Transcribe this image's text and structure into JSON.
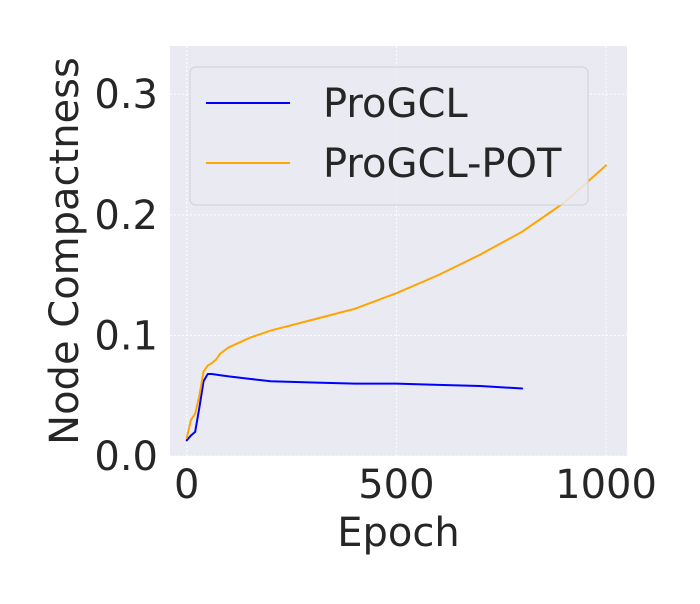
{
  "chart_data": {
    "type": "line",
    "title": "",
    "xlabel": "Epoch",
    "ylabel": "Node Compactness",
    "xlim": [
      -40,
      1050
    ],
    "ylim": [
      0,
      0.34
    ],
    "xticks": [
      {
        "value": 0,
        "label": "0"
      },
      {
        "value": 500,
        "label": "500"
      },
      {
        "value": 1000,
        "label": "1000"
      }
    ],
    "yticks": [
      {
        "value": 0,
        "label": "0.0"
      },
      {
        "value": 0.1,
        "label": "0.1"
      },
      {
        "value": 0.2,
        "label": "0.2"
      },
      {
        "value": 0.3,
        "label": "0.3"
      }
    ],
    "grid": true,
    "legend": "top-left",
    "background_color": "#eaeaf2",
    "series": [
      {
        "name": "ProGCL",
        "color": "#0000ff",
        "x": [
          0,
          10,
          20,
          30,
          40,
          50,
          60,
          80,
          100,
          150,
          200,
          300,
          400,
          500,
          600,
          700,
          800
        ],
        "y": [
          0.013,
          0.017,
          0.02,
          0.04,
          0.062,
          0.068,
          0.068,
          0.067,
          0.066,
          0.064,
          0.062,
          0.061,
          0.06,
          0.06,
          0.059,
          0.058,
          0.056
        ]
      },
      {
        "name": "ProGCL-POT",
        "color": "#ffa500",
        "x": [
          0,
          10,
          20,
          30,
          40,
          50,
          60,
          70,
          80,
          100,
          150,
          200,
          300,
          400,
          500,
          600,
          700,
          800,
          900,
          1000
        ],
        "y": [
          0.015,
          0.03,
          0.035,
          0.05,
          0.07,
          0.075,
          0.077,
          0.08,
          0.085,
          0.09,
          0.098,
          0.104,
          0.113,
          0.122,
          0.135,
          0.15,
          0.167,
          0.186,
          0.21,
          0.241
        ]
      }
    ]
  }
}
